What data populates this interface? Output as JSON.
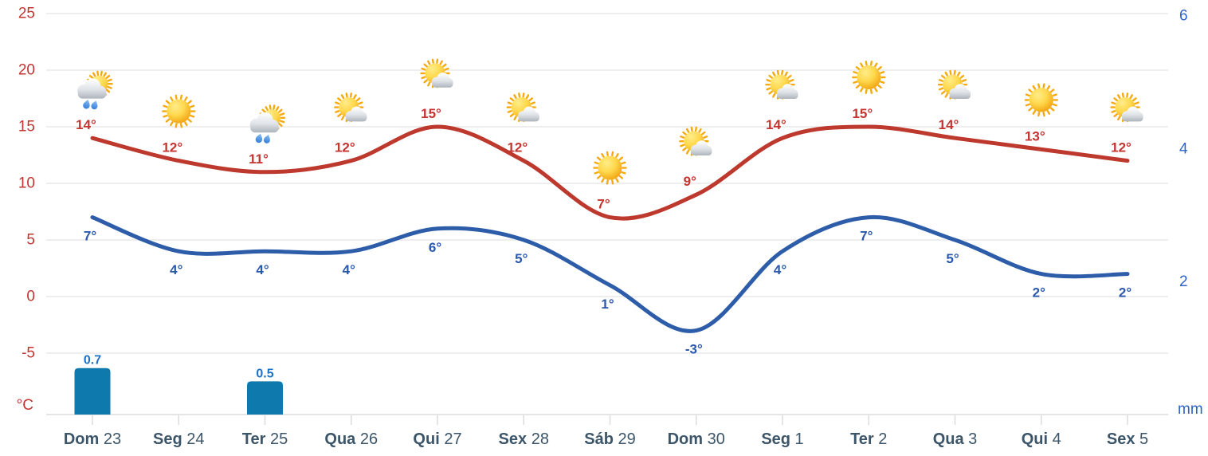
{
  "chart_data": {
    "type": "line",
    "title": "",
    "description": "14-day weather forecast: max/min temperature lines, precipitation bars, daily weather icons",
    "categories": [
      "Dom 23",
      "Seg 24",
      "Ter 25",
      "Qua 26",
      "Qui 27",
      "Sex 28",
      "Sáb 29",
      "Dom 30",
      "Seg 1",
      "Ter 2",
      "Qua 3",
      "Qui 4",
      "Sex 5"
    ],
    "x_labels": [
      {
        "day": "Dom",
        "date": "23"
      },
      {
        "day": "Seg",
        "date": "24"
      },
      {
        "day": "Ter",
        "date": "25"
      },
      {
        "day": "Qua",
        "date": "26"
      },
      {
        "day": "Qui",
        "date": "27"
      },
      {
        "day": "Sex",
        "date": "28"
      },
      {
        "day": "Sáb",
        "date": "29"
      },
      {
        "day": "Dom",
        "date": "30"
      },
      {
        "day": "Seg",
        "date": "1"
      },
      {
        "day": "Ter",
        "date": "2"
      },
      {
        "day": "Qua",
        "date": "3"
      },
      {
        "day": "Qui",
        "date": "4"
      },
      {
        "day": "Sex",
        "date": "5"
      }
    ],
    "icons": [
      "sun-rain-cloud",
      "sun",
      "sun-rain-cloud",
      "sun-cloud",
      "sun-cloud",
      "sun-cloud",
      "sun",
      "sun-cloud",
      "sun-cloud",
      "sun",
      "sun-cloud",
      "sun",
      "sun-cloud"
    ],
    "series": [
      {
        "name": "max-temperature",
        "type": "line",
        "color": "#bd382d",
        "label_color": "#c43430",
        "values": [
          14,
          12,
          11,
          12,
          15,
          12,
          7,
          9,
          14,
          15,
          14,
          13,
          12
        ],
        "labels": [
          "14°",
          "12°",
          "11°",
          "12°",
          "15°",
          "12°",
          "7°",
          "9°",
          "14°",
          "15°",
          "14°",
          "13°",
          "12°"
        ]
      },
      {
        "name": "min-temperature",
        "type": "line",
        "color": "#2d5ca9",
        "label_color": "#2a58ad",
        "values": [
          7,
          4,
          4,
          4,
          6,
          5,
          1,
          -3,
          4,
          7,
          5,
          2,
          2
        ],
        "labels": [
          "7°",
          "4°",
          "4°",
          "4°",
          "6°",
          "5°",
          "1°",
          "-3°",
          "4°",
          "7°",
          "5°",
          "2°",
          "2°"
        ]
      },
      {
        "name": "precipitation",
        "type": "bar",
        "color": "#0e79ac",
        "label_color": "#1d72c6",
        "values": [
          0.7,
          null,
          0.5,
          null,
          null,
          null,
          null,
          null,
          null,
          null,
          null,
          null,
          null
        ],
        "labels": [
          "0.7",
          null,
          "0.5",
          null,
          null,
          null,
          null,
          null,
          null,
          null,
          null,
          null,
          null
        ]
      }
    ],
    "left_axis": {
      "unit": "°C",
      "ticks": [
        25,
        20,
        15,
        10,
        5,
        0,
        -5
      ],
      "range": [
        -5,
        25
      ],
      "color": "#c43430"
    },
    "right_axis": {
      "unit": "mm",
      "ticks": [
        6,
        4,
        2
      ],
      "range": [
        0,
        6
      ],
      "color": "#2d64c8"
    },
    "x_axis": {
      "color": "#3c5569"
    },
    "grid": {
      "on": true,
      "color": "#eeeeee",
      "baseline_color": "#e4e4e4",
      "tick_color": "#dcdcdc"
    },
    "legend": {
      "position": "none"
    },
    "icon_colors": {
      "sun_core": "#ffd94e",
      "sun_edge": "#f2a513",
      "ray": "#f5a90d",
      "cloud_top": "#ffffff",
      "cloud_bottom": "#aeb4bc",
      "drop_top": "#8fc3f2",
      "drop_bottom": "#2f7ad8"
    }
  }
}
